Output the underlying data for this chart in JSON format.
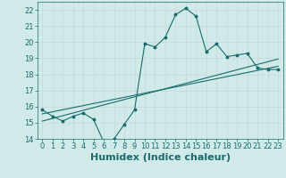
{
  "xlabel": "Humidex (Indice chaleur)",
  "ylabel": "",
  "background_color": "#d0eaea",
  "grid_color": "#c8d8d8",
  "line_color": "#1a6b6b",
  "x_data": [
    0,
    1,
    2,
    3,
    4,
    5,
    6,
    7,
    8,
    9,
    10,
    11,
    12,
    13,
    14,
    15,
    16,
    17,
    18,
    19,
    20,
    21,
    22,
    23
  ],
  "y_main": [
    15.8,
    15.4,
    15.1,
    15.4,
    15.6,
    15.2,
    13.8,
    14.0,
    14.9,
    15.8,
    19.9,
    19.7,
    20.3,
    21.7,
    22.1,
    21.6,
    19.4,
    19.9,
    19.1,
    19.2,
    19.3,
    18.4,
    18.3,
    18.3
  ],
  "trend1_x": [
    0,
    23
  ],
  "trend1_y": [
    15.55,
    18.5
  ],
  "trend2_x": [
    0,
    23
  ],
  "trend2_y": [
    15.1,
    18.95
  ],
  "xlim": [
    -0.5,
    23.5
  ],
  "ylim": [
    14,
    22.5
  ],
  "yticks": [
    14,
    15,
    16,
    17,
    18,
    19,
    20,
    21,
    22
  ],
  "xticks": [
    0,
    1,
    2,
    3,
    4,
    5,
    6,
    7,
    8,
    9,
    10,
    11,
    12,
    13,
    14,
    15,
    16,
    17,
    18,
    19,
    20,
    21,
    22,
    23
  ],
  "fontsize_label": 7,
  "fontsize_tick": 6,
  "fontsize_xlabel": 8
}
